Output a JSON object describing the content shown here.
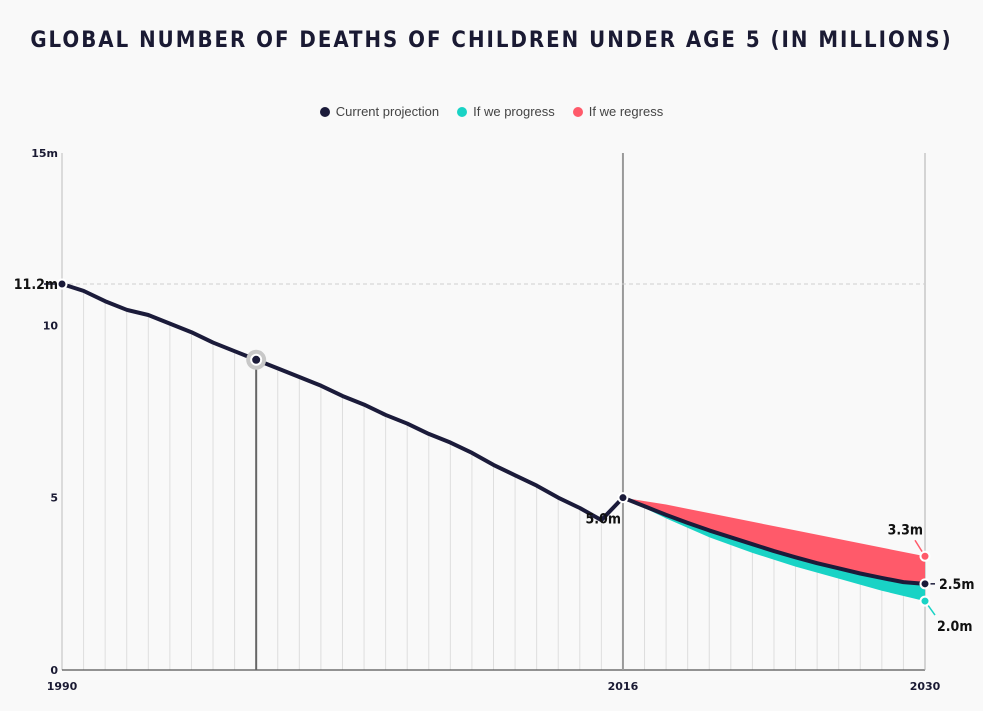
{
  "chart_data": {
    "type": "line",
    "title": "GLOBAL NUMBER OF DEATHS OF CHILDREN UNDER AGE 5 (IN MILLIONS)",
    "xlabel": "",
    "ylabel": "",
    "xlim": [
      1990,
      2030
    ],
    "ylim": [
      0,
      15
    ],
    "x_ticks": [
      1990,
      2016,
      2030
    ],
    "y_ticks": [
      0,
      5,
      10,
      15
    ],
    "y_tick_labels": [
      "0",
      "5",
      "10",
      "15m"
    ],
    "grid": true,
    "legend_position": "top-center",
    "series": [
      {
        "name": "Current projection",
        "color": "#1b1b3a",
        "x": [
          1990,
          1991,
          1992,
          1993,
          1994,
          1995,
          1996,
          1997,
          1998,
          1999,
          2000,
          2001,
          2002,
          2003,
          2004,
          2005,
          2006,
          2007,
          2008,
          2009,
          2010,
          2011,
          2012,
          2013,
          2014,
          2015,
          2016,
          2017,
          2018,
          2019,
          2020,
          2021,
          2022,
          2023,
          2024,
          2025,
          2026,
          2027,
          2028,
          2029,
          2030
        ],
        "values": [
          11.2,
          11.0,
          10.7,
          10.45,
          10.3,
          10.05,
          9.8,
          9.5,
          9.25,
          9.0,
          8.75,
          8.5,
          8.25,
          7.95,
          7.7,
          7.4,
          7.15,
          6.85,
          6.6,
          6.3,
          5.95,
          5.65,
          5.35,
          5.0,
          4.7,
          4.35,
          5.0,
          4.75,
          4.5,
          4.27,
          4.05,
          3.85,
          3.65,
          3.45,
          3.27,
          3.1,
          2.95,
          2.8,
          2.67,
          2.55,
          2.5
        ]
      },
      {
        "name": "If we progress",
        "color": "#19d3c5",
        "x": [
          2016,
          2018,
          2020,
          2022,
          2024,
          2026,
          2028,
          2030
        ],
        "values": [
          5.0,
          4.4,
          3.85,
          3.4,
          3.0,
          2.65,
          2.3,
          2.0
        ]
      },
      {
        "name": "If we regress",
        "color": "#ff5a6a",
        "x": [
          2016,
          2018,
          2020,
          2022,
          2024,
          2026,
          2028,
          2030
        ],
        "values": [
          5.0,
          4.8,
          4.55,
          4.3,
          4.05,
          3.8,
          3.55,
          3.3
        ]
      }
    ],
    "annotations": [
      {
        "x": 1990,
        "y": 11.2,
        "label": "11.2m"
      },
      {
        "x": 2016,
        "y": 5.0,
        "label": "5.0m"
      },
      {
        "x": 2030,
        "y": 3.3,
        "label": "3.3m"
      },
      {
        "x": 2030,
        "y": 2.5,
        "label": "2.5m"
      },
      {
        "x": 2030,
        "y": 2.0,
        "label": "2.0m"
      }
    ],
    "highlight_x": 1999
  }
}
